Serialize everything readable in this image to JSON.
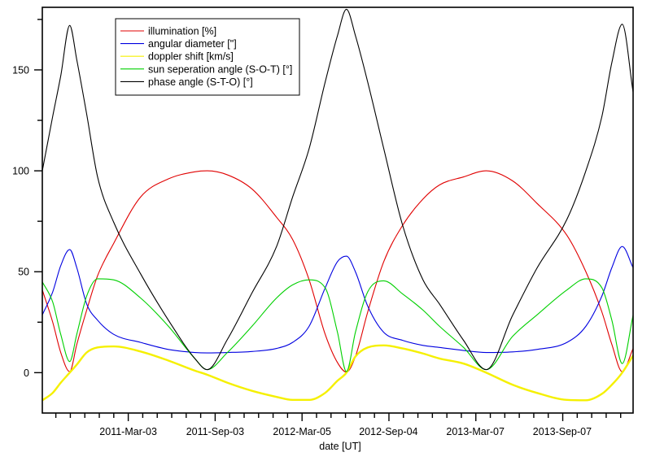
{
  "chart_data": {
    "type": "line",
    "title": "",
    "xlabel": "date [UT]",
    "ylabel": "",
    "xlim": [
      "2010-09-02",
      "2014-02-04"
    ],
    "ylim": [
      -20,
      181
    ],
    "grid": false,
    "legend_placement": "top-left",
    "x_major_ticks": [
      "2011-03-03",
      "2011-09-03",
      "2012-03-05",
      "2012-09-04",
      "2013-03-07",
      "2013-09-07"
    ],
    "x_tick_labels": [
      "2011-Mar-03",
      "2011-Sep-03",
      "2012-Mar-05",
      "2012-Sep-04",
      "2013-Mar-07",
      "2013-Sep-07"
    ],
    "y_major_ticks": [
      0,
      50,
      100,
      150
    ],
    "y_tick_labels": [
      "0",
      "50",
      "100",
      "150"
    ],
    "y_minor_ticks": [
      25,
      75,
      125,
      175
    ],
    "x": [
      "2010-09-02",
      "2010-09-24",
      "2010-10-11",
      "2010-10-30",
      "2010-11-14",
      "2010-12-05",
      "2010-12-28",
      "2011-01-31",
      "2011-03-29",
      "2011-05-27",
      "2011-07-22",
      "2011-08-17",
      "2011-09-29",
      "2011-11-20",
      "2012-01-11",
      "2012-02-14",
      "2012-03-20",
      "2012-04-23",
      "2012-05-19",
      "2012-06-07",
      "2012-06-26",
      "2012-07-22",
      "2012-08-25",
      "2012-10-04",
      "2012-11-16",
      "2012-12-21",
      "2013-02-10",
      "2013-03-30",
      "2013-05-25",
      "2013-07-15",
      "2013-09-17",
      "2013-10-27",
      "2013-11-30",
      "2013-12-21",
      "2014-01-12",
      "2014-02-04"
    ],
    "series": [
      {
        "name": "illumination [%]",
        "color": "#e00000",
        "values": [
          41,
          25,
          10,
          0.5,
          14,
          31,
          48,
          64,
          87,
          96,
          99.5,
          100,
          98,
          91,
          77,
          66,
          46,
          19,
          5,
          0.3,
          8,
          30,
          55,
          73,
          86,
          93,
          97,
          100,
          95,
          84,
          68,
          50,
          30,
          14,
          0.5,
          12
        ]
      },
      {
        "name": "angular diameter [\"]",
        "color": "#0000e0",
        "values": [
          28.6,
          40,
          53,
          61,
          52,
          34,
          26,
          19,
          15,
          11.5,
          10,
          9.8,
          10,
          10.5,
          12,
          15,
          23,
          42,
          55,
          57.7,
          50,
          33,
          20,
          16,
          13.5,
          12.5,
          11,
          10,
          10.3,
          11.5,
          15,
          23,
          38,
          52,
          62.5,
          52
        ]
      },
      {
        "name": "doppler shift [km/s]",
        "color": "#f5f000",
        "values": [
          -13.7,
          -10,
          -5,
          0,
          4,
          10,
          12.5,
          13,
          10.5,
          6,
          1,
          -1,
          -5,
          -9,
          -12,
          -13.5,
          -13.5,
          -10,
          -4,
          0,
          8,
          12.5,
          13.5,
          12,
          9.5,
          7,
          4.5,
          0,
          -6,
          -10,
          -13.5,
          -13.7,
          -10.5,
          -6,
          0,
          8.5
        ]
      },
      {
        "name": "sun seperation angle (S-O-T) [°]",
        "color": "#00d000",
        "values": [
          45,
          35,
          19,
          5.5,
          19,
          38,
          46.5,
          46,
          37,
          23,
          7,
          1.5,
          10,
          23,
          37,
          43.5,
          46,
          42,
          20,
          0.5,
          20,
          40,
          45.5,
          39,
          31,
          23,
          12.5,
          1.5,
          18,
          28.5,
          41,
          46.5,
          42,
          26,
          4.5,
          28.5
        ]
      },
      {
        "name": "phase angle (S-T-O) [°]",
        "color": "#000000",
        "values": [
          100,
          127,
          147,
          172,
          155,
          128,
          97,
          74.6,
          49,
          26,
          7,
          1.5,
          16.5,
          39.5,
          62.5,
          87,
          111,
          144,
          167,
          180,
          167,
          144,
          111,
          73,
          46,
          34,
          16,
          1.5,
          28.5,
          51.6,
          76,
          100,
          127,
          153.6,
          172.6,
          139
        ]
      }
    ]
  }
}
